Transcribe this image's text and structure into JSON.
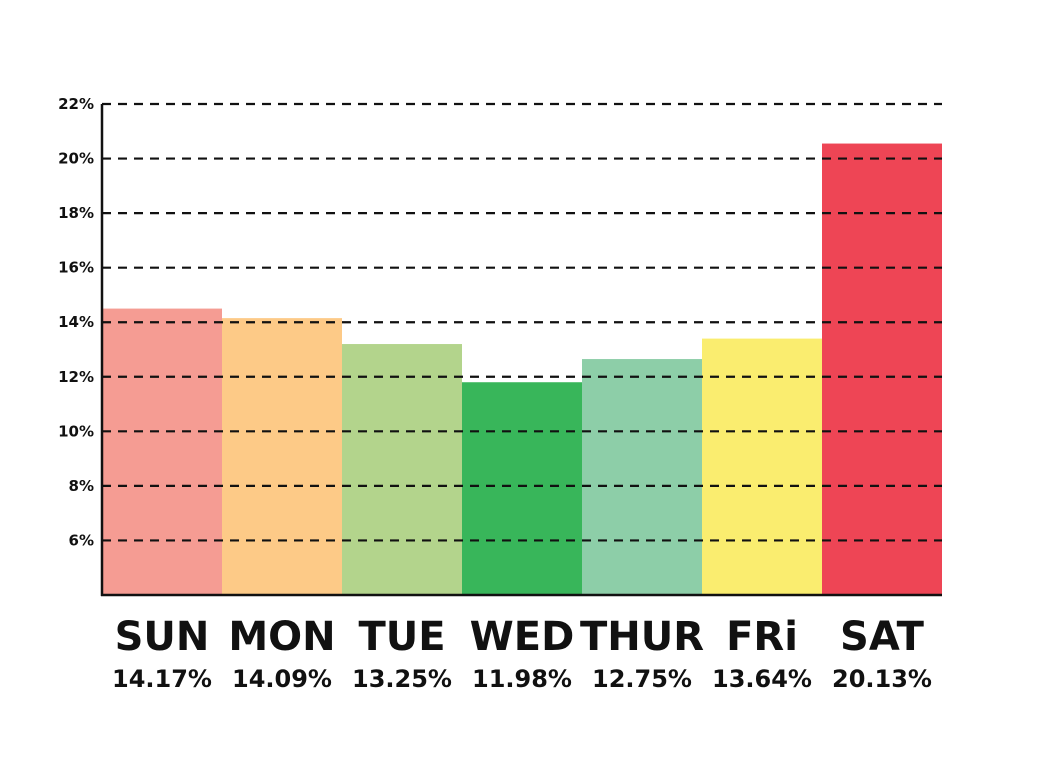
{
  "chart_data": {
    "type": "bar",
    "categories": [
      "SUN",
      "MON",
      "TUE",
      "WED",
      "THUR",
      "FRi",
      "SAT"
    ],
    "values": [
      14.17,
      14.09,
      13.25,
      11.98,
      12.75,
      13.64,
      20.13
    ],
    "bar_heights": [
      14.5,
      14.15,
      13.2,
      11.8,
      12.65,
      13.4,
      20.55
    ],
    "value_labels": [
      "14.17%",
      "14.09%",
      "13.25%",
      "11.98%",
      "12.75%",
      "13.64%",
      "20.13%"
    ],
    "colors": [
      "#f59c93",
      "#fdca87",
      "#b3d48c",
      "#38b65a",
      "#8dcea8",
      "#faed6f",
      "#ee4555"
    ],
    "ylim": [
      4,
      22
    ],
    "yticks": [
      6,
      8,
      10,
      12,
      14,
      16,
      18,
      20,
      22
    ],
    "ytick_labels": [
      "6%",
      "8%",
      "10%",
      "12%",
      "14%",
      "16%",
      "18%",
      "20%",
      "22%"
    ],
    "grid": true,
    "grid_style": "dashed"
  }
}
